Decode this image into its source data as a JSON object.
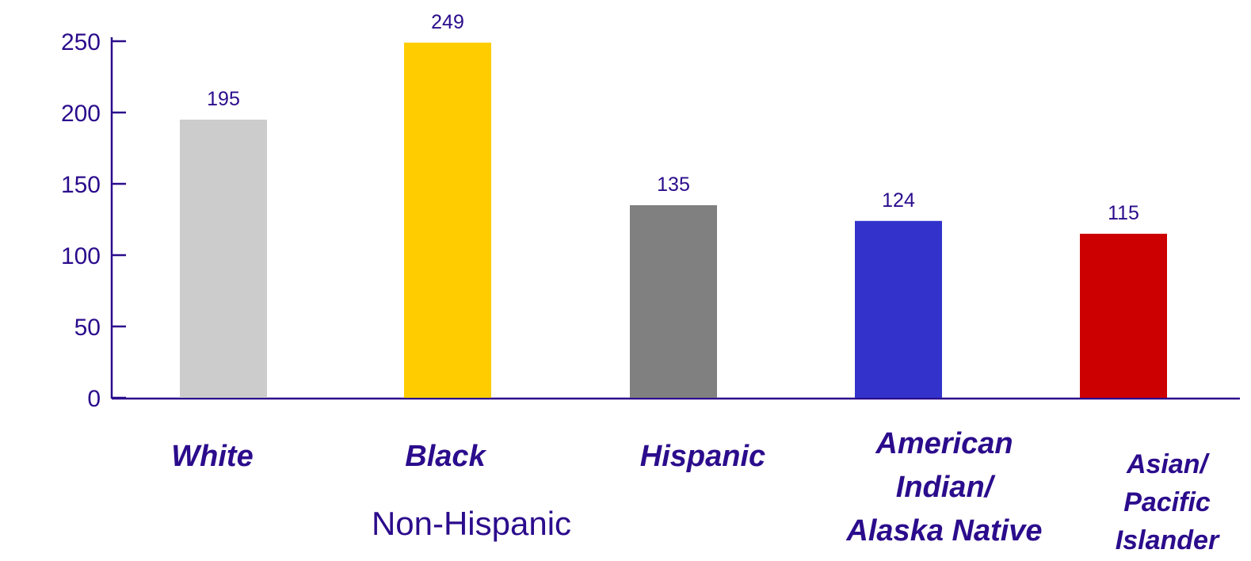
{
  "chart_data": {
    "type": "bar",
    "title": "",
    "xlabel": "",
    "ylabel": "",
    "ylim": [
      0,
      250
    ],
    "yticks": [
      0,
      50,
      100,
      150,
      200,
      250
    ],
    "grid": false,
    "legend": "none",
    "group_label": "Non-Hispanic",
    "categories": [
      {
        "label_lines": [
          "White"
        ]
      },
      {
        "label_lines": [
          "Black"
        ]
      },
      {
        "label_lines": [
          "Hispanic"
        ]
      },
      {
        "label_lines": [
          "American",
          "Indian/",
          "Alaska Native"
        ]
      },
      {
        "label_lines": [
          "Asian/",
          "Pacific",
          "Islander"
        ]
      }
    ],
    "values": [
      195,
      249,
      135,
      124,
      115
    ],
    "colors": [
      "#cccccc",
      "#ffcc00",
      "#808080",
      "#3333cc",
      "#cc0000"
    ],
    "axis_color": "#2b0c8c",
    "text_color": "#2b0c8c"
  }
}
